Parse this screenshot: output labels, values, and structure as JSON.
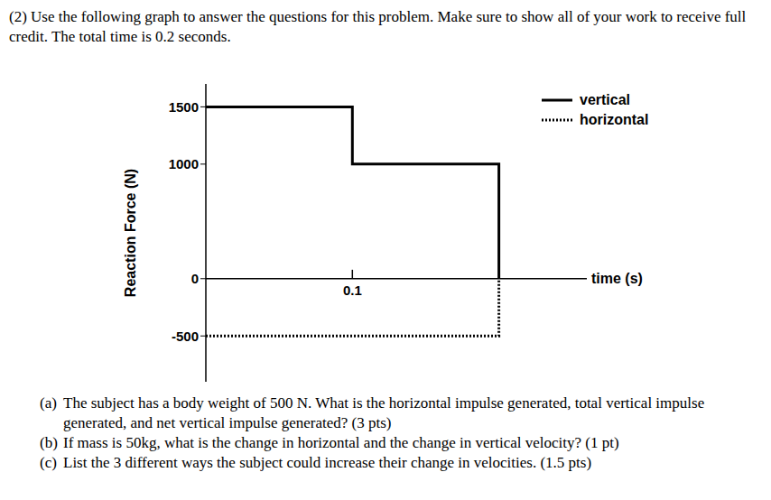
{
  "intro": "(2) Use the following graph to answer the questions for this problem. Make sure to show all of your work to receive full credit. The total time is 0.2 seconds.",
  "chart_data": {
    "type": "line",
    "x_label": "time (s)",
    "y_label": "Reaction Force (N)",
    "xlim": [
      0,
      0.26
    ],
    "xticks": [
      0.1
    ],
    "ylim": [
      -900,
      1700
    ],
    "yticks": [
      -500,
      0,
      1000,
      1500
    ],
    "legend": "upper right",
    "series": [
      {
        "name": "vertical",
        "color": "#000000",
        "line_style": "solid",
        "x": [
          0,
          0.1,
          0.1,
          0.2,
          0.2
        ],
        "values": [
          1500,
          1500,
          1000,
          1000,
          0
        ]
      },
      {
        "name": "horizontal",
        "color": "#000000",
        "line_style": "dotted",
        "x": [
          0,
          0.2,
          0.2
        ],
        "values": [
          -500,
          -500,
          0
        ]
      }
    ]
  },
  "questions": [
    {
      "label": "(a)",
      "text": "The subject has a body weight of 500 N. What is the horizontal impulse generated, total vertical impulse generated, and net vertical impulse generated? (3 pts)"
    },
    {
      "label": "(b)",
      "text": "If mass is 50kg, what is the change in horizontal and the change in vertical velocity? (1 pt)"
    },
    {
      "label": "(c)",
      "text": "List the 3 different ways the subject could increase their change in velocities. (1.5 pts)"
    }
  ]
}
